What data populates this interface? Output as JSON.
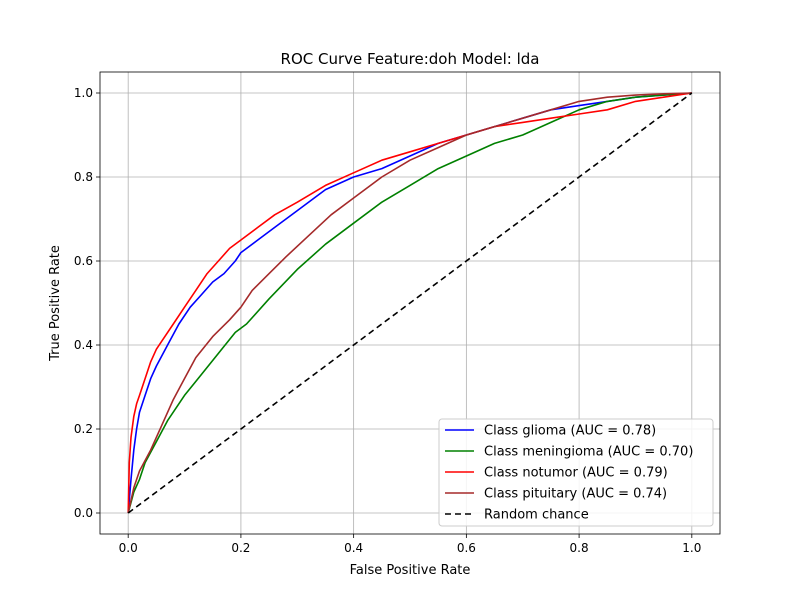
{
  "chart_data": {
    "type": "line",
    "title": "ROC Curve Feature:doh Model: lda",
    "xlabel": "False Positive Rate",
    "ylabel": "True Positive Rate",
    "xlim": [
      -0.05,
      1.05
    ],
    "ylim": [
      -0.05,
      1.05
    ],
    "xticks": [
      "0.0",
      "0.2",
      "0.4",
      "0.6",
      "0.8",
      "1.0"
    ],
    "yticks": [
      "0.0",
      "0.2",
      "0.4",
      "0.6",
      "0.8",
      "1.0"
    ],
    "grid": true,
    "legend_position": "lower-right",
    "series": [
      {
        "name": "Class glioma (AUC = 0.78)",
        "color": "#0000ff",
        "x": [
          0.0,
          0.005,
          0.01,
          0.015,
          0.02,
          0.03,
          0.04,
          0.05,
          0.07,
          0.09,
          0.11,
          0.13,
          0.15,
          0.17,
          0.19,
          0.2,
          0.23,
          0.26,
          0.3,
          0.35,
          0.4,
          0.45,
          0.5,
          0.55,
          0.6,
          0.65,
          0.7,
          0.75,
          0.8,
          0.85,
          0.9,
          0.95,
          1.0
        ],
        "y": [
          0.0,
          0.08,
          0.15,
          0.2,
          0.24,
          0.28,
          0.32,
          0.35,
          0.4,
          0.45,
          0.49,
          0.52,
          0.55,
          0.57,
          0.6,
          0.62,
          0.65,
          0.68,
          0.72,
          0.77,
          0.8,
          0.82,
          0.85,
          0.88,
          0.9,
          0.92,
          0.94,
          0.96,
          0.97,
          0.98,
          0.99,
          0.995,
          1.0
        ]
      },
      {
        "name": "Class meningioma (AUC = 0.70)",
        "color": "#008000",
        "x": [
          0.0,
          0.01,
          0.02,
          0.03,
          0.05,
          0.07,
          0.1,
          0.13,
          0.16,
          0.19,
          0.21,
          0.25,
          0.3,
          0.35,
          0.4,
          0.45,
          0.5,
          0.55,
          0.6,
          0.65,
          0.7,
          0.75,
          0.8,
          0.85,
          0.9,
          0.95,
          1.0
        ],
        "y": [
          0.0,
          0.05,
          0.08,
          0.12,
          0.17,
          0.22,
          0.28,
          0.33,
          0.38,
          0.43,
          0.45,
          0.51,
          0.58,
          0.64,
          0.69,
          0.74,
          0.78,
          0.82,
          0.85,
          0.88,
          0.9,
          0.93,
          0.96,
          0.98,
          0.99,
          0.995,
          1.0
        ]
      },
      {
        "name": "Class notumor (AUC = 0.79)",
        "color": "#ff0000",
        "x": [
          0.0,
          0.002,
          0.005,
          0.01,
          0.015,
          0.02,
          0.03,
          0.04,
          0.05,
          0.06,
          0.08,
          0.1,
          0.12,
          0.14,
          0.16,
          0.18,
          0.2,
          0.23,
          0.26,
          0.3,
          0.35,
          0.4,
          0.45,
          0.5,
          0.55,
          0.6,
          0.65,
          0.7,
          0.75,
          0.8,
          0.85,
          0.9,
          0.95,
          1.0
        ],
        "y": [
          0.0,
          0.12,
          0.18,
          0.23,
          0.26,
          0.28,
          0.32,
          0.36,
          0.39,
          0.41,
          0.45,
          0.49,
          0.53,
          0.57,
          0.6,
          0.63,
          0.65,
          0.68,
          0.71,
          0.74,
          0.78,
          0.81,
          0.84,
          0.86,
          0.88,
          0.9,
          0.92,
          0.93,
          0.94,
          0.95,
          0.96,
          0.98,
          0.99,
          1.0
        ]
      },
      {
        "name": "Class pituitary (AUC = 0.74)",
        "color": "#a52a2a",
        "x": [
          0.0,
          0.01,
          0.02,
          0.04,
          0.06,
          0.08,
          0.1,
          0.12,
          0.15,
          0.18,
          0.2,
          0.22,
          0.25,
          0.28,
          0.32,
          0.36,
          0.4,
          0.45,
          0.5,
          0.55,
          0.6,
          0.65,
          0.7,
          0.75,
          0.8,
          0.85,
          0.9,
          0.95,
          1.0
        ],
        "y": [
          0.0,
          0.06,
          0.1,
          0.15,
          0.21,
          0.27,
          0.32,
          0.37,
          0.42,
          0.46,
          0.49,
          0.53,
          0.57,
          0.61,
          0.66,
          0.71,
          0.75,
          0.8,
          0.84,
          0.87,
          0.9,
          0.92,
          0.94,
          0.96,
          0.98,
          0.99,
          0.995,
          0.998,
          1.0
        ]
      },
      {
        "name": "Random chance",
        "color": "#000000",
        "dashed": true,
        "x": [
          0.0,
          1.0
        ],
        "y": [
          0.0,
          1.0
        ]
      }
    ]
  }
}
